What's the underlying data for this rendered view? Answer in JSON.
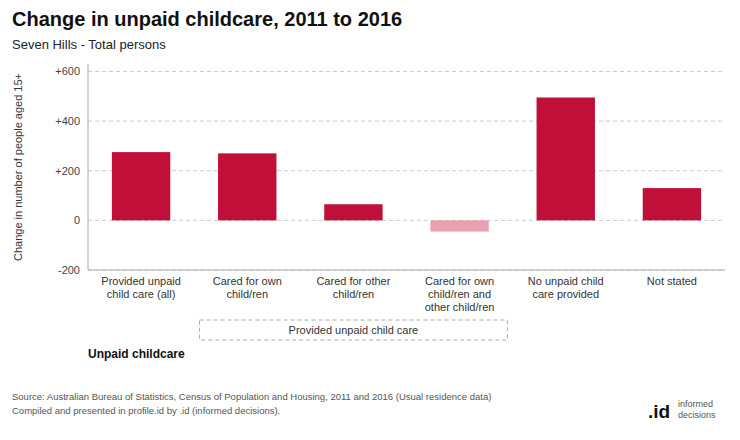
{
  "chart_data": {
    "type": "bar",
    "title": "Change in unpaid childcare, 2011 to 2016",
    "subtitle": "Seven Hills - Total persons",
    "categories": [
      "Provided unpaid\nchild care (all)",
      "Cared for own\nchild/ren",
      "Cared for other\nchild/ren",
      "Cared for own\nchild/ren and\nother child/ren",
      "No unpaid child\ncare provided",
      "Not stated"
    ],
    "values": [
      275,
      270,
      65,
      -45,
      495,
      130
    ],
    "colors": [
      "#C0103A",
      "#C0103A",
      "#C0103A",
      "#E8A0B0",
      "#C0103A",
      "#C0103A"
    ],
    "xlabel": "Unpaid childcare",
    "ylabel": "Change in number of people aged 15+",
    "ylim": [
      -200,
      630
    ],
    "yticks": [
      -200,
      0,
      {
        "value": 200,
        "label": "+200"
      },
      {
        "value": 400,
        "label": "+400"
      },
      {
        "value": 600,
        "label": "+600"
      }
    ],
    "grid": true,
    "annotations": [
      "Provided unpaid child care",
      "Source: Australian Bureau of Statistics, Census of Population and Housing, 2011 and 2016 (Usual residence data)\nCompiled and presented in profile.id by .id (informed decisions).",
      ".id",
      "informed\ndecisions"
    ]
  }
}
